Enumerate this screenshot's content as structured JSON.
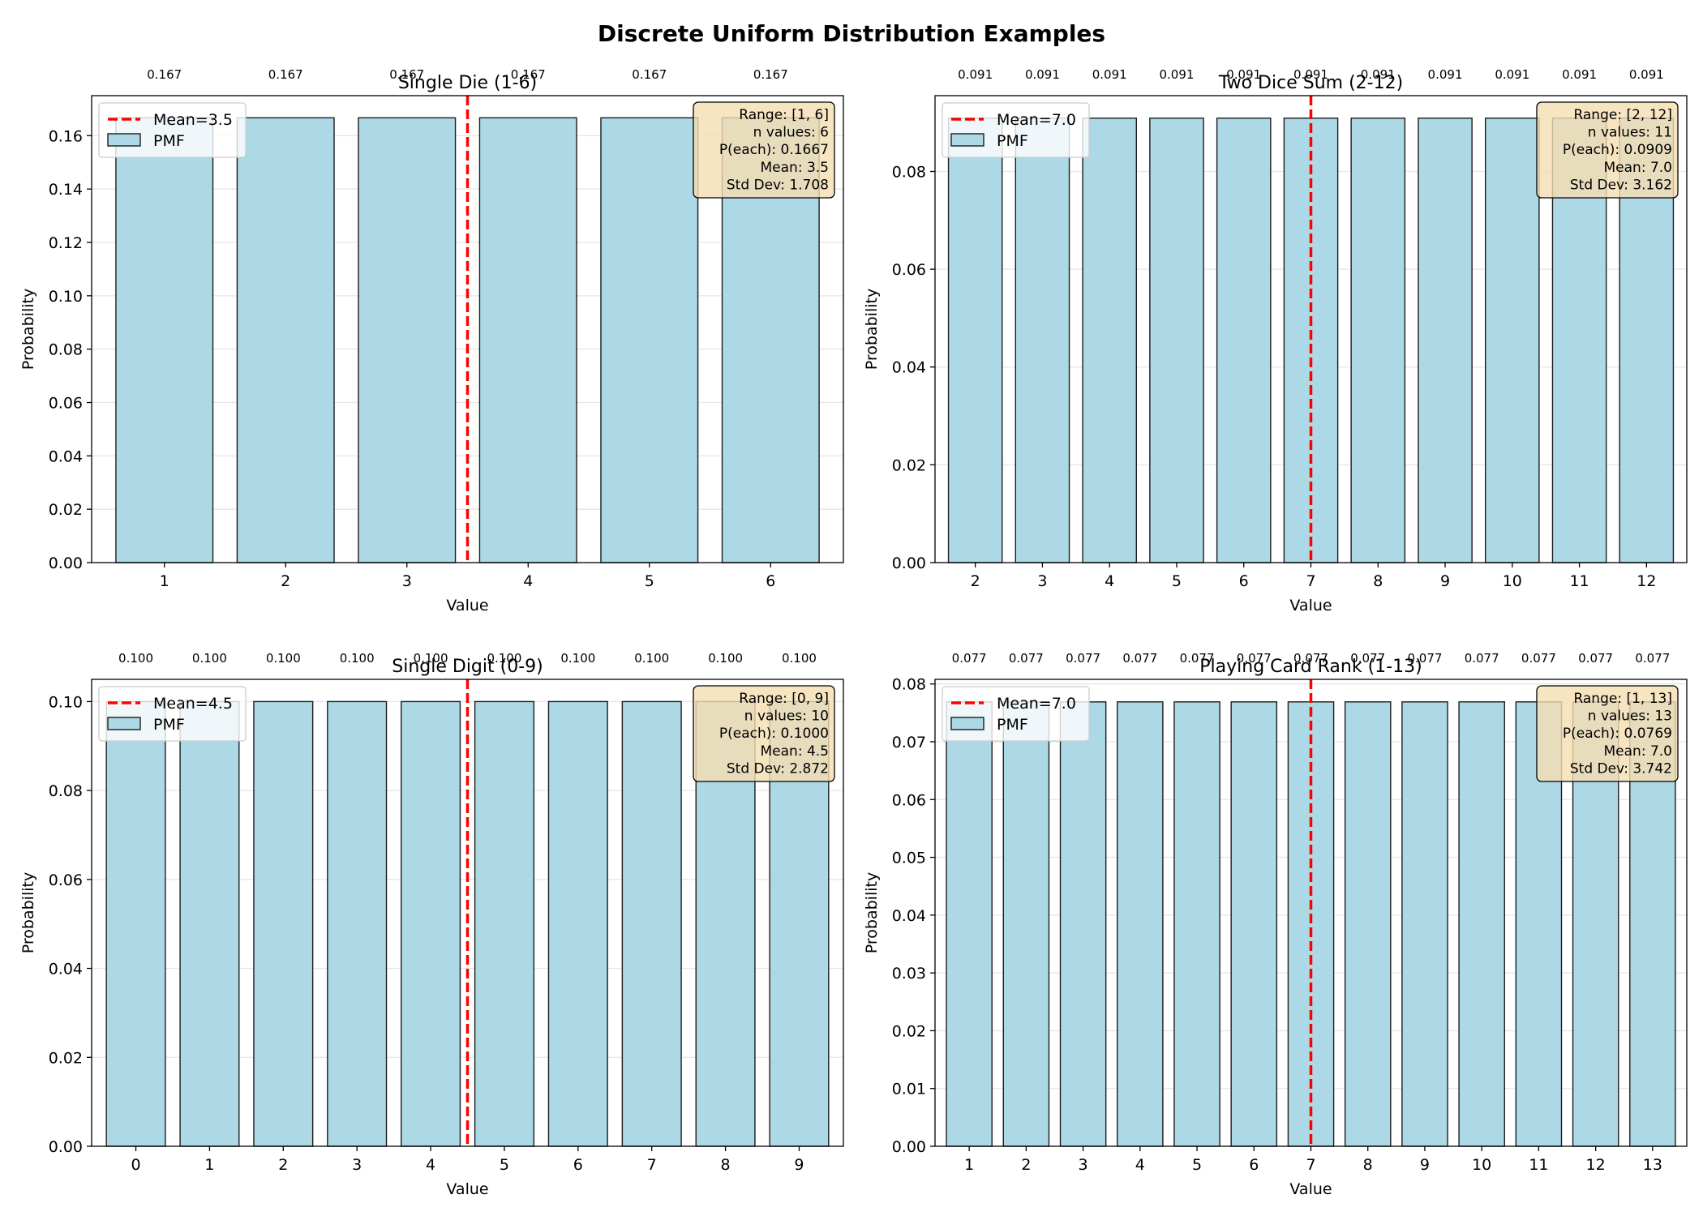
{
  "figure": {
    "title": "Discrete Uniform Distribution Examples"
  },
  "chart_data": [
    {
      "type": "bar",
      "title": "Single Die (1-6)",
      "xlabel": "Value",
      "ylabel": "Probability",
      "categories": [
        1,
        2,
        3,
        4,
        5,
        6
      ],
      "values": [
        0.1667,
        0.1667,
        0.1667,
        0.1667,
        0.1667,
        0.1667
      ],
      "value_labels": [
        "0.167",
        "0.167",
        "0.167",
        "0.167",
        "0.167",
        "0.167"
      ],
      "ylim": [
        0,
        0.175
      ],
      "yticks": [
        0.0,
        0.02,
        0.04,
        0.06,
        0.08,
        0.1,
        0.12,
        0.14,
        0.16
      ],
      "ytick_labels": [
        "0.00",
        "0.02",
        "0.04",
        "0.06",
        "0.08",
        "0.10",
        "0.12",
        "0.14",
        "0.16"
      ],
      "xlim": [
        0.4,
        6.6
      ],
      "mean": 3.5,
      "legend": {
        "position": "upper left",
        "entries": [
          "Mean=3.5",
          "PMF"
        ]
      },
      "stats": [
        "Range: [1, 6]",
        "n values: 6",
        "P(each): 0.1667",
        "Mean: 3.5",
        "Std Dev: 1.708"
      ],
      "grid": "y"
    },
    {
      "type": "bar",
      "title": "Two Dice Sum (2-12)",
      "xlabel": "Value",
      "ylabel": "Probability",
      "categories": [
        2,
        3,
        4,
        5,
        6,
        7,
        8,
        9,
        10,
        11,
        12
      ],
      "values": [
        0.0909,
        0.0909,
        0.0909,
        0.0909,
        0.0909,
        0.0909,
        0.0909,
        0.0909,
        0.0909,
        0.0909,
        0.0909
      ],
      "value_labels": [
        "0.091",
        "0.091",
        "0.091",
        "0.091",
        "0.091",
        "0.091",
        "0.091",
        "0.091",
        "0.091",
        "0.091",
        "0.091"
      ],
      "ylim": [
        0,
        0.0955
      ],
      "yticks": [
        0.0,
        0.02,
        0.04,
        0.06,
        0.08
      ],
      "ytick_labels": [
        "0.00",
        "0.02",
        "0.04",
        "0.06",
        "0.08"
      ],
      "xlim": [
        1.4,
        12.6
      ],
      "mean": 7.0,
      "legend": {
        "position": "upper left",
        "entries": [
          "Mean=7.0",
          "PMF"
        ]
      },
      "stats": [
        "Range: [2, 12]",
        "n values: 11",
        "P(each): 0.0909",
        "Mean: 7.0",
        "Std Dev: 3.162"
      ],
      "grid": "y"
    },
    {
      "type": "bar",
      "title": "Single Digit (0-9)",
      "xlabel": "Value",
      "ylabel": "Probability",
      "categories": [
        0,
        1,
        2,
        3,
        4,
        5,
        6,
        7,
        8,
        9
      ],
      "values": [
        0.1,
        0.1,
        0.1,
        0.1,
        0.1,
        0.1,
        0.1,
        0.1,
        0.1,
        0.1
      ],
      "value_labels": [
        "0.100",
        "0.100",
        "0.100",
        "0.100",
        "0.100",
        "0.100",
        "0.100",
        "0.100",
        "0.100",
        "0.100"
      ],
      "ylim": [
        0,
        0.105
      ],
      "yticks": [
        0.0,
        0.02,
        0.04,
        0.06,
        0.08,
        0.1
      ],
      "ytick_labels": [
        "0.00",
        "0.02",
        "0.04",
        "0.06",
        "0.08",
        "0.10"
      ],
      "xlim": [
        -0.6,
        9.6
      ],
      "mean": 4.5,
      "legend": {
        "position": "upper left",
        "entries": [
          "Mean=4.5",
          "PMF"
        ]
      },
      "stats": [
        "Range: [0, 9]",
        "n values: 10",
        "P(each): 0.1000",
        "Mean: 4.5",
        "Std Dev: 2.872"
      ],
      "grid": "y"
    },
    {
      "type": "bar",
      "title": "Playing Card Rank (1-13)",
      "xlabel": "Value",
      "ylabel": "Probability",
      "categories": [
        1,
        2,
        3,
        4,
        5,
        6,
        7,
        8,
        9,
        10,
        11,
        12,
        13
      ],
      "values": [
        0.0769,
        0.0769,
        0.0769,
        0.0769,
        0.0769,
        0.0769,
        0.0769,
        0.0769,
        0.0769,
        0.0769,
        0.0769,
        0.0769,
        0.0769
      ],
      "value_labels": [
        "0.077",
        "0.077",
        "0.077",
        "0.077",
        "0.077",
        "0.077",
        "0.077",
        "0.077",
        "0.077",
        "0.077",
        "0.077",
        "0.077",
        "0.077"
      ],
      "ylim": [
        0,
        0.0808
      ],
      "yticks": [
        0.0,
        0.01,
        0.02,
        0.03,
        0.04,
        0.05,
        0.06,
        0.07,
        0.08
      ],
      "ytick_labels": [
        "0.00",
        "0.01",
        "0.02",
        "0.03",
        "0.04",
        "0.05",
        "0.06",
        "0.07",
        "0.08"
      ],
      "xlim": [
        0.4,
        13.6
      ],
      "mean": 7.0,
      "legend": {
        "position": "upper left",
        "entries": [
          "Mean=7.0",
          "PMF"
        ]
      },
      "stats": [
        "Range: [1, 13]",
        "n values: 13",
        "P(each): 0.0769",
        "Mean: 7.0",
        "Std Dev: 3.742"
      ],
      "grid": "y"
    }
  ],
  "colors": {
    "bar_fill": "#add8e6",
    "bar_edge": "#1c1c1c",
    "mean_line": "#ff0000",
    "stats_box_fill": "#f5deb3",
    "grid": "#e6e6e6"
  }
}
